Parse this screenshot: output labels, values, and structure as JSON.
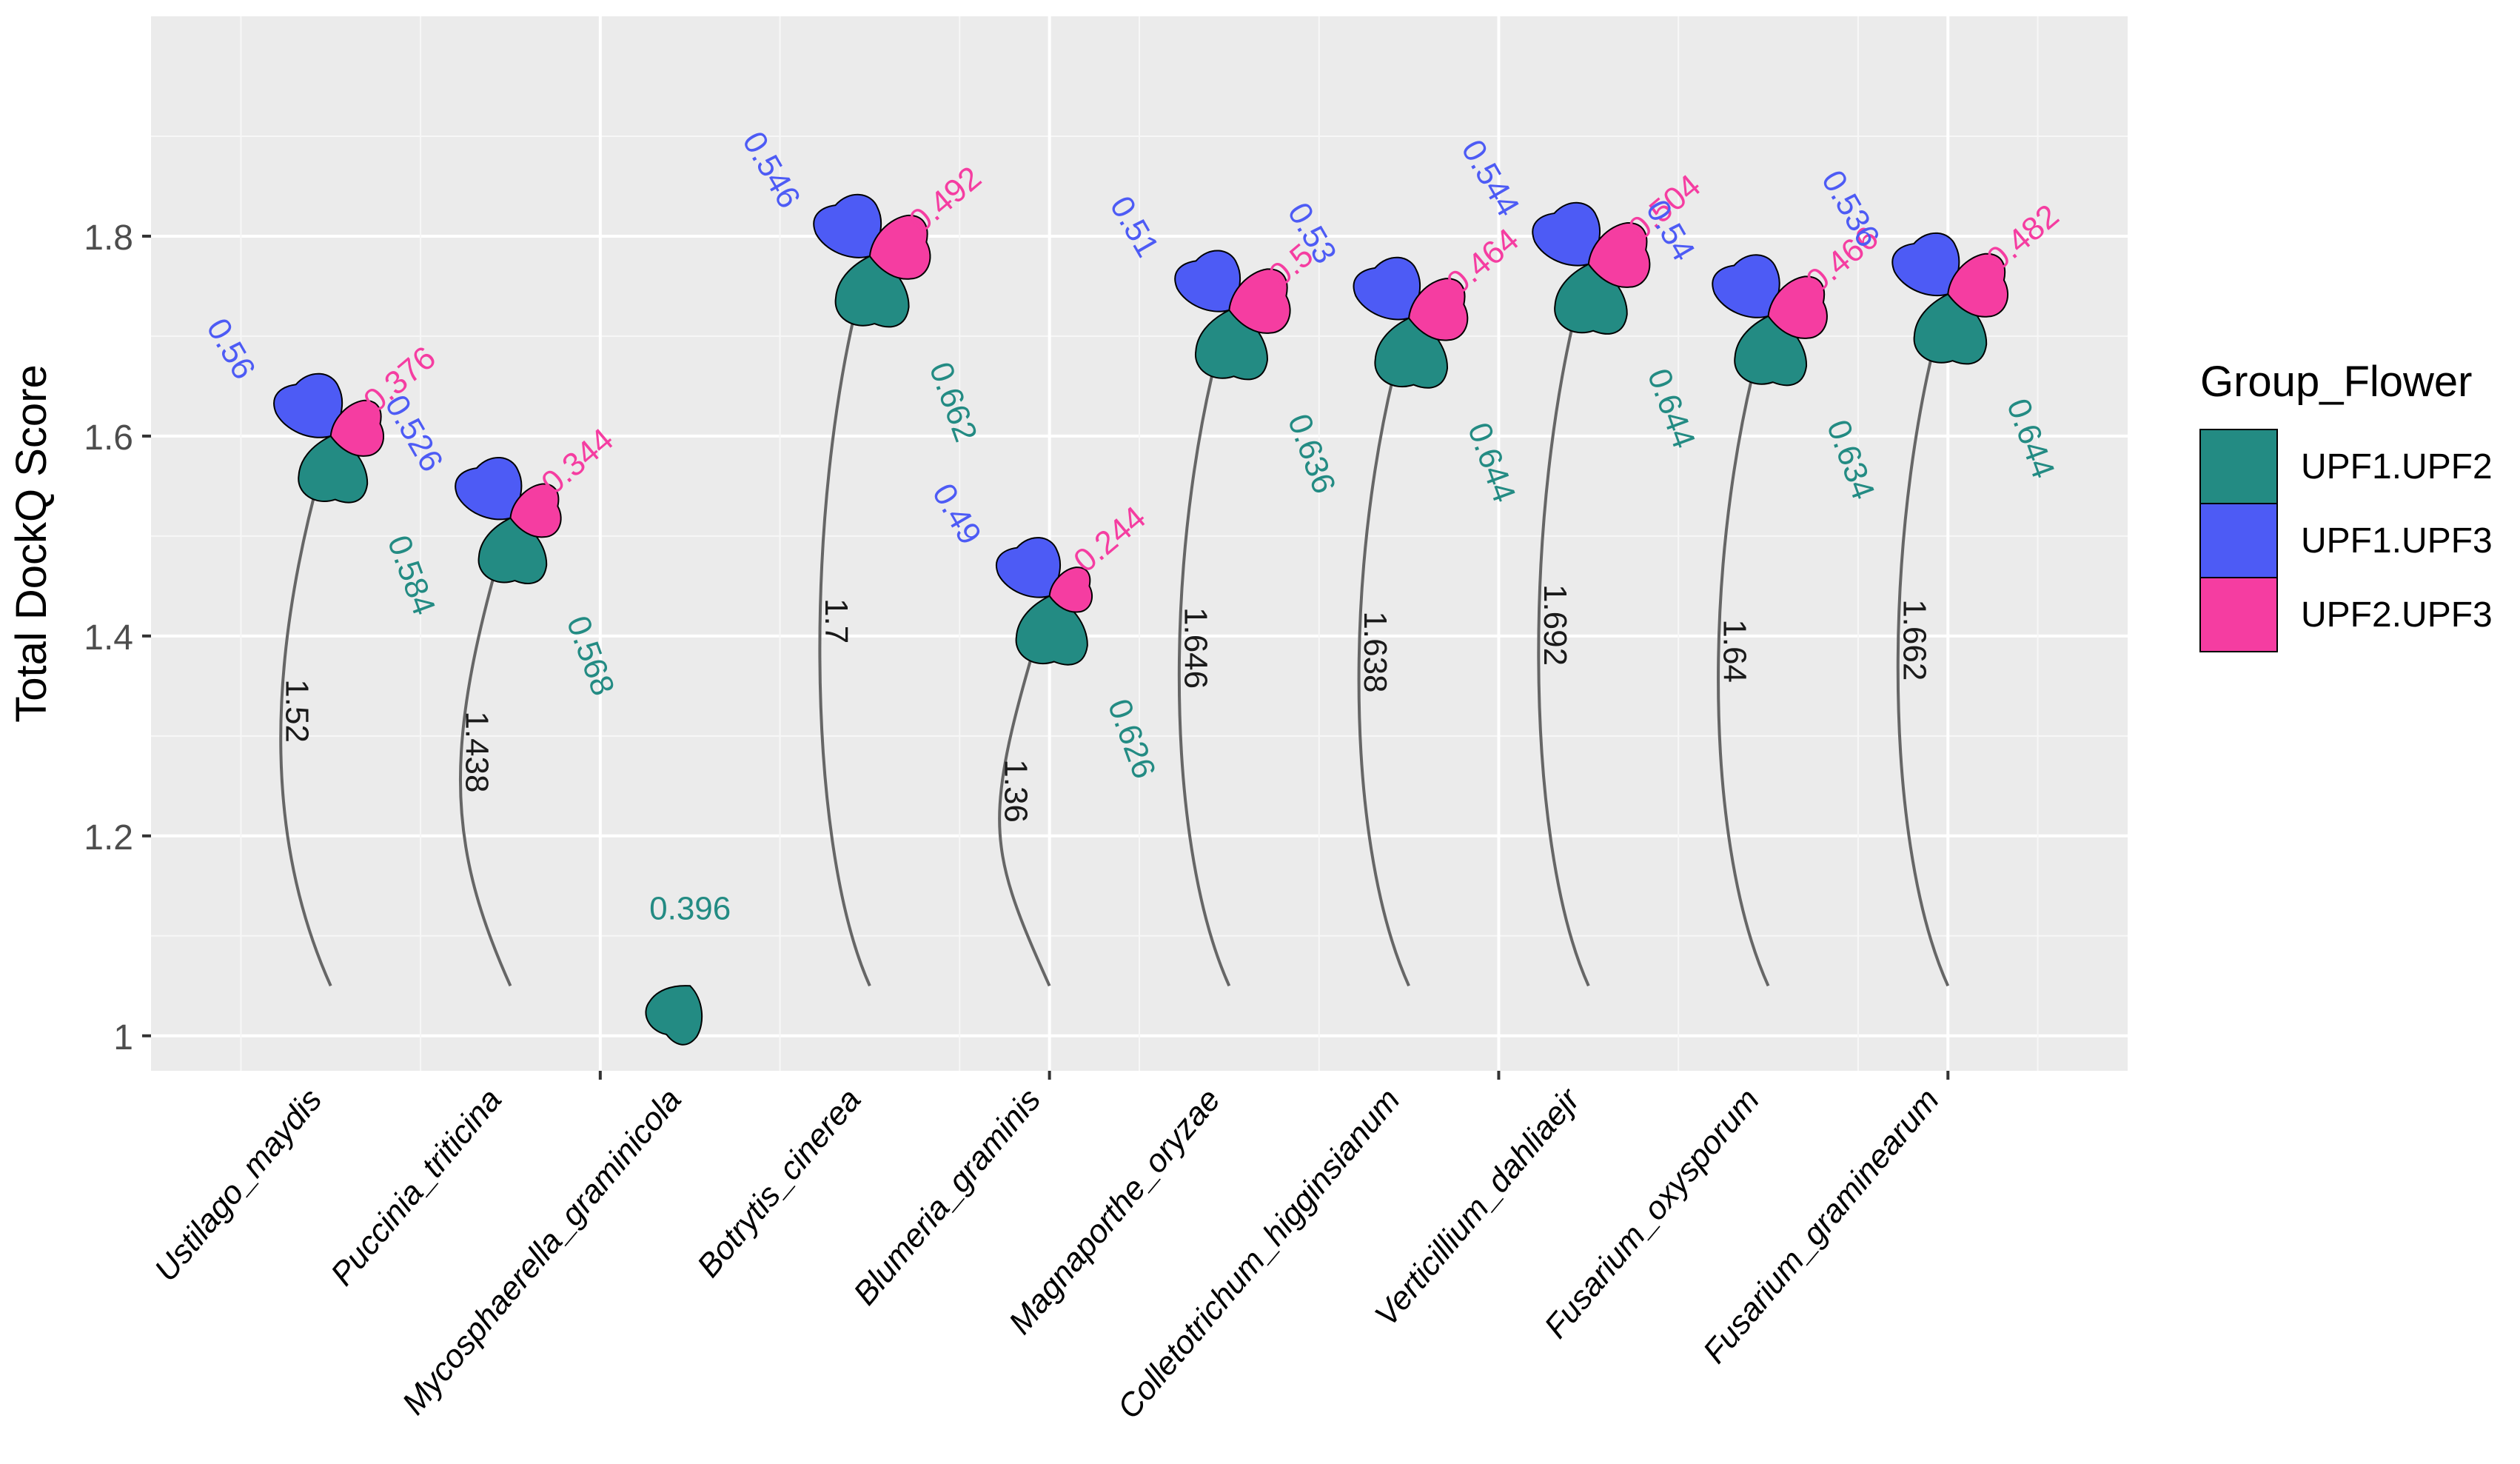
{
  "chart_data": {
    "type": "scatter",
    "title": "",
    "xlabel": "",
    "ylabel": "Total DockQ Score",
    "ylim": [
      0.965,
      2.02
    ],
    "yticks": [
      1,
      1.2,
      1.4,
      1.6,
      1.8
    ],
    "ytick_labels": [
      "1",
      "1.2",
      "1.4",
      "1.6",
      "1.8"
    ],
    "grid": true,
    "categories": [
      "Ustilago_maydis",
      "Puccinia_triticina",
      "Mycosphaerella_graminicola",
      "Botrytis_cinerea",
      "Blumeria_graminis",
      "Magnaporthe_oryzae",
      "Colletotrichum_higginsianum",
      "Verticillium_dahliaejr",
      "Fusarium_oxysporum",
      "Fusarium_graminearum"
    ],
    "totals": [
      1.52,
      1.438,
      0.396,
      1.7,
      1.36,
      1.646,
      1.638,
      1.692,
      1.64,
      1.662
    ],
    "total_labels": [
      "1.52",
      "1.438",
      "",
      "1.7",
      "1.36",
      "1.646",
      "1.638",
      "1.692",
      "1.64",
      "1.662"
    ],
    "series": [
      {
        "name": "UPF1.UPF2",
        "color": "#238B83",
        "values": [
          0.584,
          0.568,
          0.396,
          0.662,
          0.626,
          0.636,
          0.644,
          0.644,
          0.634,
          0.644
        ],
        "labels": [
          "0.584",
          "0.568",
          "0.396",
          "0.662",
          "0.626",
          "0.636",
          "0.644",
          "0.644",
          "0.634",
          "0.644"
        ]
      },
      {
        "name": "UPF1.UPF3",
        "color": "#4D5BF5",
        "values": [
          0.56,
          0.526,
          null,
          0.546,
          0.49,
          0.51,
          0.53,
          0.544,
          0.54,
          0.536
        ],
        "labels": [
          "0.56",
          "0.526",
          "",
          "0.546",
          "0.49",
          "0.51",
          "0.53",
          "0.544",
          "0.54",
          "0.536"
        ]
      },
      {
        "name": "UPF2.UPF3",
        "color": "#F53DA1",
        "values": [
          0.376,
          0.344,
          null,
          0.492,
          0.244,
          0.5,
          0.464,
          0.504,
          0.466,
          0.482
        ],
        "labels": [
          "0.376",
          "0.344",
          "",
          "0.492",
          "0.244",
          "0.5",
          "0.464",
          "0.504",
          "0.466",
          "0.482"
        ]
      }
    ],
    "legend": {
      "title": "Group_Flower",
      "position": "right",
      "items": [
        "UPF1.UPF2",
        "UPF1.UPF3",
        "UPF2.UPF3"
      ]
    }
  }
}
